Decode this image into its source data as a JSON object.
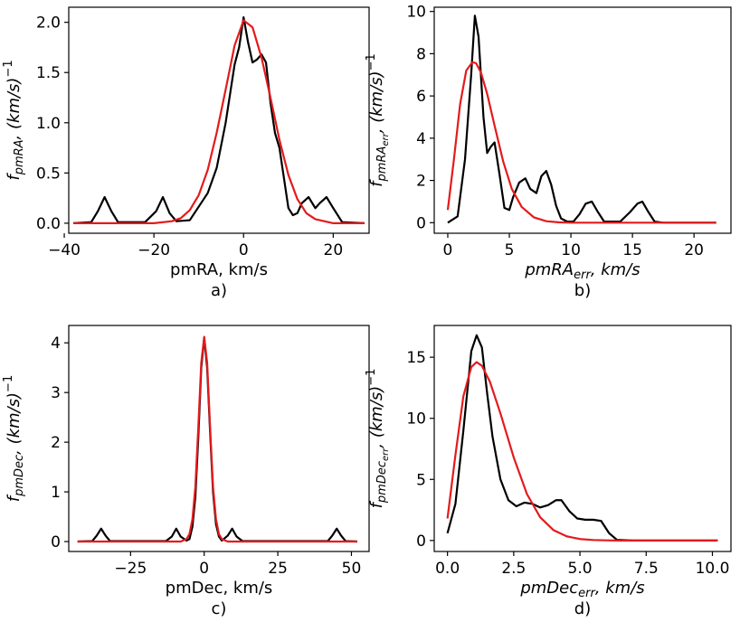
{
  "colors": {
    "kde": "#000000",
    "fit": "#e41a1c"
  },
  "chart_data": [
    {
      "id": "a",
      "type": "line",
      "panel_label": "a)",
      "xlabel": "pmRA, km/s",
      "ylabel_base": "f",
      "ylabel_sub": "pmRA",
      "ylabel_rest": ", (km/s)",
      "ylabel_sup": "−1",
      "xlim": [
        -39,
        28
      ],
      "ylim": [
        -0.1,
        2.15
      ],
      "xticks": [
        -40,
        -20,
        0,
        20
      ],
      "xtick_labels": [
        "−40",
        "−20",
        "0",
        "20"
      ],
      "yticks": [
        0.0,
        0.5,
        1.0,
        1.5,
        2.0
      ],
      "ytick_labels": [
        "0.0",
        "0.5",
        "1.0",
        "1.5",
        "2.0"
      ],
      "series": [
        {
          "color": "#000000",
          "x": [
            -38,
            -34,
            -32.5,
            -31,
            -29.5,
            -28,
            -22,
            -19.5,
            -18,
            -16.5,
            -15,
            -12,
            -8,
            -6,
            -4,
            -2,
            -1,
            0,
            1,
            2,
            3,
            4,
            5,
            6,
            7,
            8,
            9,
            10,
            11,
            12,
            13,
            14.5,
            16,
            17,
            18.5,
            20,
            22,
            27
          ],
          "y": [
            0,
            0.01,
            0.12,
            0.26,
            0.12,
            0.01,
            0.01,
            0.12,
            0.26,
            0.1,
            0.02,
            0.03,
            0.3,
            0.55,
            1.0,
            1.58,
            1.75,
            2.05,
            1.8,
            1.6,
            1.63,
            1.68,
            1.6,
            1.2,
            0.9,
            0.75,
            0.45,
            0.15,
            0.08,
            0.1,
            0.2,
            0.26,
            0.15,
            0.2,
            0.26,
            0.15,
            0.01,
            0
          ]
        },
        {
          "color": "#e41a1c",
          "x": [
            -38,
            -20,
            -16,
            -14,
            -12,
            -10,
            -8,
            -6,
            -4,
            -2,
            0,
            2,
            4,
            6,
            8,
            10,
            12,
            14,
            16,
            20,
            27
          ],
          "y": [
            0,
            0,
            0.02,
            0.05,
            0.13,
            0.28,
            0.53,
            0.9,
            1.33,
            1.77,
            2.02,
            1.95,
            1.65,
            1.25,
            0.83,
            0.48,
            0.24,
            0.1,
            0.04,
            0,
            0
          ]
        }
      ]
    },
    {
      "id": "b",
      "type": "line",
      "panel_label": "b)",
      "xlabel_base": "pmRA",
      "xlabel_sub": "err",
      "xlabel_rest": ", km/s",
      "ylabel_base": "f",
      "ylabel_sub": "pmRA",
      "ylabel_subsub": "err",
      "ylabel_rest": ", (km/s)",
      "ylabel_sup": "−1",
      "xlim": [
        -1.1,
        23
      ],
      "ylim": [
        -0.5,
        10.2
      ],
      "xticks": [
        0,
        5,
        10,
        15,
        20
      ],
      "xtick_labels": [
        "0",
        "5",
        "10",
        "15",
        "20"
      ],
      "yticks": [
        0,
        2,
        4,
        6,
        8,
        10
      ],
      "ytick_labels": [
        "0",
        "2",
        "4",
        "6",
        "8",
        "10"
      ],
      "series": [
        {
          "color": "#000000",
          "x": [
            0,
            0.8,
            1.4,
            1.9,
            2.2,
            2.5,
            2.9,
            3.2,
            3.5,
            3.8,
            4.2,
            4.6,
            5,
            5.3,
            5.8,
            6.3,
            6.7,
            7.2,
            7.6,
            8,
            8.4,
            8.8,
            9.2,
            9.7,
            10.2,
            10.7,
            11.2,
            11.7,
            12.2,
            12.7,
            14,
            14.8,
            15.4,
            15.8,
            16.3,
            16.8,
            17.5,
            21.8
          ],
          "y": [
            0,
            0.3,
            3,
            7,
            9.8,
            8.8,
            5,
            3.3,
            3.6,
            3.8,
            2.3,
            0.7,
            0.6,
            1.2,
            1.9,
            2.1,
            1.6,
            1.4,
            2.2,
            2.45,
            1.8,
            0.8,
            0.2,
            0.05,
            0.05,
            0.4,
            0.9,
            1.0,
            0.5,
            0.05,
            0.05,
            0.5,
            0.9,
            1.0,
            0.5,
            0.05,
            0,
            0
          ]
        },
        {
          "color": "#e41a1c",
          "x": [
            0,
            0.5,
            1,
            1.5,
            2,
            2.3,
            2.7,
            3.2,
            3.8,
            4.5,
            5.2,
            6,
            7,
            8,
            9,
            10,
            12,
            14,
            21.8
          ],
          "y": [
            0.6,
            3,
            5.6,
            7.2,
            7.6,
            7.55,
            7.1,
            6.1,
            4.6,
            2.9,
            1.6,
            0.75,
            0.25,
            0.07,
            0.02,
            0,
            0,
            0,
            0
          ]
        }
      ]
    },
    {
      "id": "c",
      "type": "line",
      "panel_label": "c)",
      "xlabel": "pmDec, km/s",
      "ylabel_base": "f",
      "ylabel_sub": "pmDec",
      "ylabel_rest": ", (km/s)",
      "ylabel_sup": "−1",
      "xlim": [
        -46,
        56
      ],
      "ylim": [
        -0.2,
        4.35
      ],
      "xticks": [
        -25,
        0,
        25,
        50
      ],
      "xtick_labels": [
        "−25",
        "0",
        "25",
        "50"
      ],
      "yticks": [
        0,
        1,
        2,
        3,
        4
      ],
      "ytick_labels": [
        "0",
        "1",
        "2",
        "3",
        "4"
      ],
      "series": [
        {
          "color": "#000000",
          "x": [
            -43,
            -38,
            -36.5,
            -35,
            -33.5,
            -32,
            -13,
            -11,
            -9.5,
            -8,
            -6,
            -5,
            -4,
            -3,
            -2,
            -1,
            0,
            1,
            2,
            3,
            4,
            5,
            6,
            8,
            9.5,
            11,
            13,
            42,
            43.5,
            45,
            46.5,
            48,
            52
          ],
          "y": [
            0,
            0.01,
            0.12,
            0.26,
            0.12,
            0.01,
            0.01,
            0.1,
            0.26,
            0.1,
            0.02,
            0.05,
            0.3,
            0.9,
            2.1,
            3.5,
            4.1,
            3.5,
            2.2,
            1.0,
            0.35,
            0.1,
            0.02,
            0.12,
            0.26,
            0.1,
            0.01,
            0.01,
            0.12,
            0.26,
            0.12,
            0.01,
            0
          ]
        },
        {
          "color": "#e41a1c",
          "x": [
            -43,
            -8,
            -6,
            -5,
            -4,
            -3,
            -2,
            -1,
            0,
            1,
            2,
            3,
            4,
            5,
            6,
            8,
            52
          ],
          "y": [
            0,
            0,
            0.05,
            0.15,
            0.45,
            1.1,
            2.3,
            3.6,
            4.12,
            3.6,
            2.3,
            1.1,
            0.45,
            0.15,
            0.05,
            0,
            0
          ]
        }
      ]
    },
    {
      "id": "d",
      "type": "line",
      "panel_label": "d)",
      "xlabel_base": "pmDec",
      "xlabel_sub": "err",
      "xlabel_rest": ", km/s",
      "ylabel_base": "f",
      "ylabel_sub": "pmDec",
      "ylabel_subsub": "err",
      "ylabel_rest": ", (km/s)",
      "ylabel_sup": "−1",
      "xlim": [
        -0.5,
        10.7
      ],
      "ylim": [
        -0.9,
        17.6
      ],
      "xticks": [
        0.0,
        2.5,
        5.0,
        7.5,
        10.0
      ],
      "xtick_labels": [
        "0.0",
        "2.5",
        "5.0",
        "7.5",
        "10.0"
      ],
      "yticks": [
        0,
        5,
        10,
        15
      ],
      "ytick_labels": [
        "0",
        "5",
        "10",
        "15"
      ],
      "series": [
        {
          "color": "#000000",
          "x": [
            0,
            0.3,
            0.6,
            0.9,
            1.1,
            1.3,
            1.5,
            1.7,
            2,
            2.3,
            2.6,
            2.9,
            3.2,
            3.5,
            3.8,
            4.1,
            4.3,
            4.6,
            4.9,
            5.2,
            5.5,
            5.8,
            6.1,
            6.4,
            7,
            10.2
          ],
          "y": [
            0.6,
            3,
            9,
            15.5,
            16.8,
            15.8,
            12,
            8.5,
            5,
            3.3,
            2.8,
            3.1,
            3.0,
            2.7,
            2.9,
            3.3,
            3.3,
            2.4,
            1.8,
            1.7,
            1.7,
            1.6,
            0.6,
            0.05,
            0,
            0
          ]
        },
        {
          "color": "#e41a1c",
          "x": [
            0,
            0.3,
            0.6,
            0.9,
            1.1,
            1.3,
            1.6,
            2,
            2.5,
            3,
            3.5,
            4,
            4.5,
            5,
            5.5,
            6,
            6.5,
            7,
            7.5,
            10.2
          ],
          "y": [
            1.8,
            7,
            11.8,
            14.2,
            14.6,
            14.3,
            13,
            10.4,
            6.8,
            3.8,
            1.9,
            0.85,
            0.34,
            0.12,
            0.04,
            0.01,
            0,
            0,
            0,
            0
          ]
        }
      ]
    }
  ]
}
